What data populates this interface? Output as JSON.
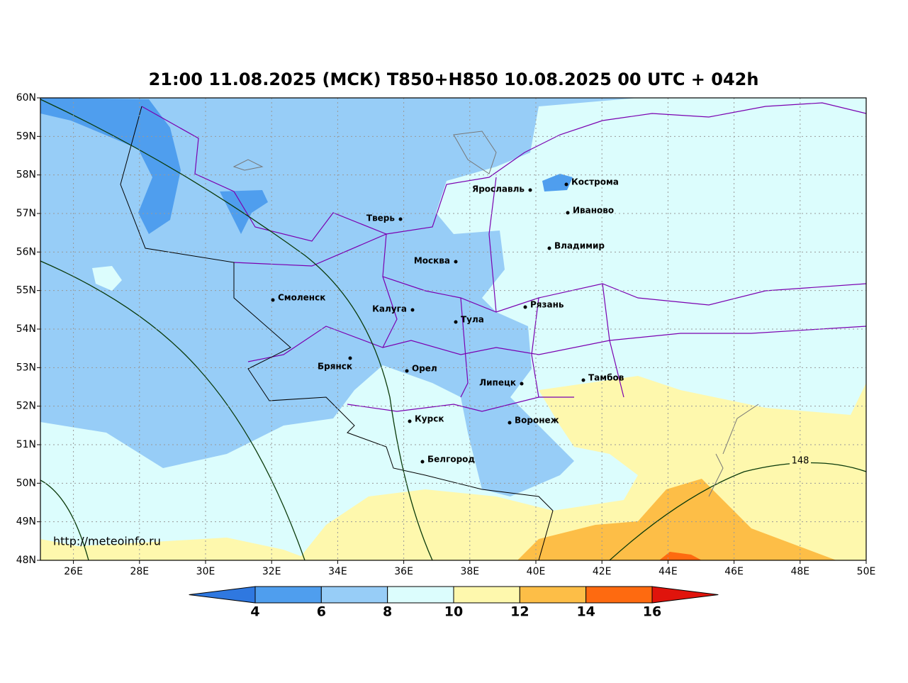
{
  "title": "21:00 11.08.2025 (МСК) T850+H850 10.08.2025 00 UTC + 042h",
  "map": {
    "lonlim": [
      25,
      50
    ],
    "latlim": [
      48,
      60
    ],
    "lat_ticks": [
      {
        "value": 48,
        "label": "48N"
      },
      {
        "value": 49,
        "label": "49N"
      },
      {
        "value": 50,
        "label": "50N"
      },
      {
        "value": 51,
        "label": "51N"
      },
      {
        "value": 52,
        "label": "52N"
      },
      {
        "value": 53,
        "label": "53N"
      },
      {
        "value": 54,
        "label": "54N"
      },
      {
        "value": 55,
        "label": "55N"
      },
      {
        "value": 56,
        "label": "56N"
      },
      {
        "value": 57,
        "label": "57N"
      },
      {
        "value": 58,
        "label": "58N"
      },
      {
        "value": 59,
        "label": "59N"
      },
      {
        "value": 60,
        "label": "60N"
      }
    ],
    "lon_ticks": [
      {
        "value": 26,
        "label": "26E"
      },
      {
        "value": 28,
        "label": "28E"
      },
      {
        "value": 30,
        "label": "30E"
      },
      {
        "value": 32,
        "label": "32E"
      },
      {
        "value": 34,
        "label": "34E"
      },
      {
        "value": 36,
        "label": "36E"
      },
      {
        "value": 38,
        "label": "38E"
      },
      {
        "value": 40,
        "label": "40E"
      },
      {
        "value": 42,
        "label": "42E"
      },
      {
        "value": 44,
        "label": "44E"
      },
      {
        "value": 46,
        "label": "46E"
      },
      {
        "value": 48,
        "label": "48E"
      },
      {
        "value": 50,
        "label": "50E"
      }
    ],
    "cities": [
      "Ярославль",
      "Кострома",
      "Иваново",
      "Тверь",
      "Владимир",
      "Москва",
      "Смоленск",
      "Рязань",
      "Калуга",
      "Тула",
      "Брянск",
      "Орел",
      "Липецк",
      "Тамбов",
      "Курск",
      "Воронеж",
      "Белгород"
    ],
    "contour_label": 148,
    "watermark": "http://meteoinfo.ru"
  },
  "colorbar": {
    "ticks": [
      4,
      6,
      8,
      10,
      12,
      14,
      16
    ],
    "colors": [
      "#2f78e0",
      "#4f9eee",
      "#97cdf7",
      "#dcfdfd",
      "#fef8ad",
      "#fdbe47",
      "#fe6a10",
      "#e0140c"
    ]
  }
}
